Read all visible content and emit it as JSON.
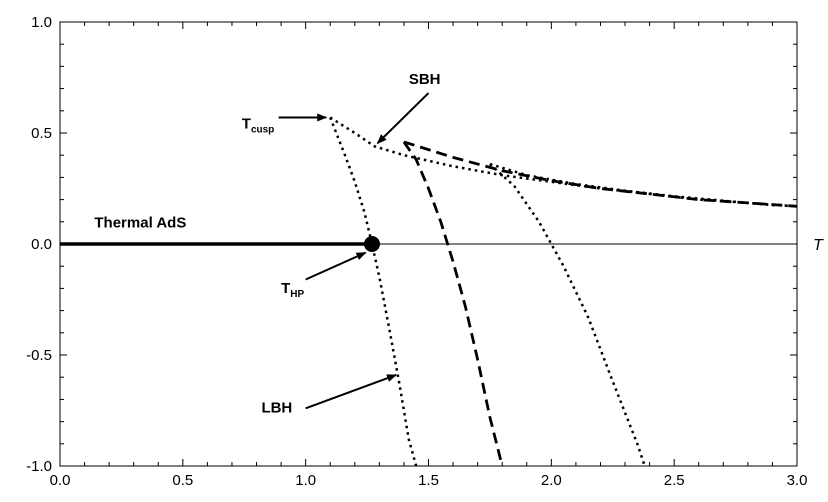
{
  "chart_data": {
    "type": "line",
    "xlabel": "T",
    "ylabel": "",
    "xlim": [
      0.0,
      3.0
    ],
    "ylim": [
      -1.0,
      1.0
    ],
    "grid": false,
    "x_ticks": [
      "0.0",
      "0.5",
      "1.0",
      "1.5",
      "2.0",
      "2.5",
      "3.0"
    ],
    "y_ticks": [
      "1.0",
      "0.5",
      "0.0",
      "-0.5",
      "-1.0"
    ],
    "series": [
      {
        "style": "solid-thick",
        "x": [
          0.0,
          1.27
        ],
        "y": [
          0.0,
          0.0
        ]
      },
      {
        "style": "dotted",
        "x": [
          1.1,
          1.16,
          1.2,
          1.24,
          1.27,
          1.3,
          1.34,
          1.38,
          1.42,
          1.45
        ],
        "y": [
          0.57,
          0.4,
          0.28,
          0.14,
          0.0,
          -0.15,
          -0.38,
          -0.62,
          -0.88,
          -1.0
        ]
      },
      {
        "style": "dotted",
        "x": [
          1.1,
          1.2,
          1.28,
          1.4,
          1.6,
          1.8,
          2.0,
          2.2,
          2.4,
          2.6,
          2.8,
          3.0
        ],
        "y": [
          0.57,
          0.5,
          0.44,
          0.4,
          0.35,
          0.31,
          0.28,
          0.25,
          0.225,
          0.2,
          0.185,
          0.17
        ]
      },
      {
        "style": "dashed",
        "x": [
          1.4,
          1.45,
          1.5,
          1.55,
          1.6,
          1.65,
          1.7,
          1.75,
          1.8
        ],
        "y": [
          0.46,
          0.38,
          0.25,
          0.1,
          -0.08,
          -0.28,
          -0.52,
          -0.78,
          -1.0
        ]
      },
      {
        "style": "dashed",
        "x": [
          1.4,
          1.6,
          1.8,
          2.0,
          2.2,
          2.4,
          2.6,
          2.8,
          3.0
        ],
        "y": [
          0.46,
          0.39,
          0.33,
          0.285,
          0.25,
          0.225,
          0.2,
          0.185,
          0.17
        ]
      },
      {
        "style": "dotted",
        "x": [
          1.75,
          1.85,
          1.95,
          2.0,
          2.05,
          2.15,
          2.25,
          2.35,
          2.38
        ],
        "y": [
          0.36,
          0.26,
          0.1,
          0.0,
          -0.1,
          -0.33,
          -0.62,
          -0.9,
          -1.0
        ]
      },
      {
        "style": "dotted",
        "x": [
          1.75,
          1.9,
          2.1,
          2.3,
          2.5,
          2.7,
          2.9,
          3.0
        ],
        "y": [
          0.36,
          0.31,
          0.27,
          0.24,
          0.215,
          0.195,
          0.175,
          0.17
        ]
      }
    ],
    "points": [
      {
        "x": 1.27,
        "y": 0.0
      }
    ],
    "annotations": {
      "thermal": {
        "text": "Thermal AdS"
      },
      "sbh": {
        "text": "SBH",
        "target": [
          1.28,
          0.44
        ]
      },
      "tcusp": {
        "base": "T",
        "sub": "cusp",
        "target": [
          1.1,
          0.57
        ]
      },
      "thp": {
        "base": "T",
        "sub": "HP",
        "target": [
          1.26,
          -0.03
        ]
      },
      "lbh": {
        "text": "LBH",
        "target": [
          1.38,
          -0.59
        ]
      }
    }
  }
}
